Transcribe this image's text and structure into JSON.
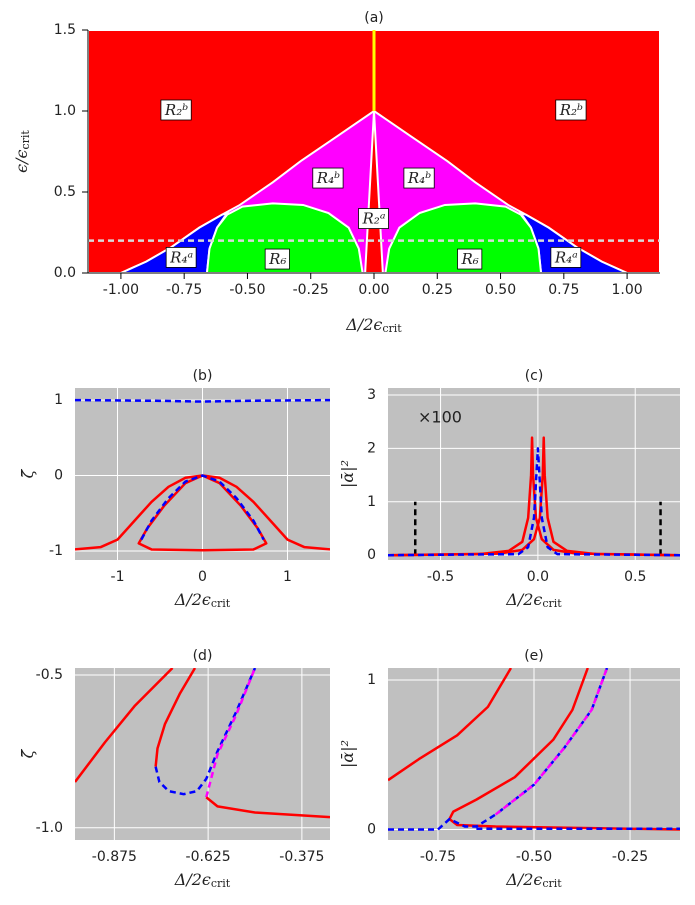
{
  "chart_data": [
    {
      "type": "region",
      "title": "(a)",
      "xlabel": "Δ/2ϵ",
      "xlabel_sub": "crit",
      "ylabel": "ϵ/ϵ",
      "ylabel_sub": "crit",
      "xlim": [
        -1.13,
        1.13
      ],
      "ylim": [
        0,
        1.5
      ],
      "xticks": [
        {
          "value": -1,
          "label": "-1.00"
        },
        {
          "value": -0.75,
          "label": "-0.75"
        },
        {
          "value": -0.5,
          "label": "-0.50"
        },
        {
          "value": -0.25,
          "label": "-0.25"
        },
        {
          "value": 0,
          "label": "0.00"
        },
        {
          "value": 0.25,
          "label": "0.25"
        },
        {
          "value": 0.5,
          "label": "0.50"
        },
        {
          "value": 0.75,
          "label": "0.75"
        },
        {
          "value": 1,
          "label": "1.00"
        }
      ],
      "yticks": [
        {
          "value": 0,
          "label": "0.0"
        },
        {
          "value": 0.5,
          "label": "0.5"
        },
        {
          "value": 1,
          "label": "1.0"
        },
        {
          "value": 1.5,
          "label": "1.5"
        }
      ],
      "grid": false,
      "regions": [
        {
          "name": "R₂ᵇ",
          "color": "#ff0000",
          "x": [
            -1.13,
            0,
            0,
            -1.13
          ],
          "y": [
            0,
            0,
            1.5,
            1.5
          ],
          "label_at": [
            -0.78,
            1.0
          ]
        },
        {
          "name": "R₂ᵇ",
          "color": "#ff0000",
          "x": [
            0,
            1.13,
            1.13,
            0
          ],
          "y": [
            0,
            0,
            1.5,
            1.5
          ],
          "label_at": [
            0.78,
            1.0
          ]
        },
        {
          "name": "R₄ᵇ",
          "color": "#ff00ff",
          "x": [
            -1.0,
            -0.9,
            -0.8,
            -0.69,
            -0.6,
            -0.53,
            -0.4,
            -0.29,
            -0.14,
            0,
            0
          ],
          "y": [
            0,
            0.07,
            0.16,
            0.28,
            0.36,
            0.42,
            0.56,
            0.69,
            0.85,
            1.0,
            0
          ],
          "label_at": [
            -0.18,
            0.58
          ]
        },
        {
          "name": "R₄ᵇ",
          "color": "#ff00ff",
          "x": [
            1.0,
            0.9,
            0.8,
            0.69,
            0.6,
            0.53,
            0.4,
            0.29,
            0.14,
            0,
            0
          ],
          "y": [
            0,
            0.07,
            0.16,
            0.28,
            0.36,
            0.42,
            0.56,
            0.69,
            0.85,
            1.0,
            0
          ],
          "label_at": [
            0.18,
            0.58
          ]
        },
        {
          "name": "R₄ᵃ",
          "color": "#0000ff",
          "x": [
            -1.0,
            -0.9,
            -0.8,
            -0.69,
            -0.6,
            -0.58,
            -0.62,
            -0.65,
            -0.66
          ],
          "y": [
            0,
            0.07,
            0.16,
            0.28,
            0.36,
            0.37,
            0.28,
            0.15,
            0
          ],
          "label_at": [
            -0.76,
            0.09
          ]
        },
        {
          "name": "R₄ᵃ",
          "color": "#0000ff",
          "x": [
            1.0,
            0.9,
            0.8,
            0.69,
            0.6,
            0.58,
            0.62,
            0.65,
            0.66
          ],
          "y": [
            0,
            0.07,
            0.16,
            0.28,
            0.36,
            0.37,
            0.28,
            0.15,
            0
          ],
          "label_at": [
            0.76,
            0.09
          ]
        },
        {
          "name": "R₆",
          "color": "#00ff00",
          "x": [
            -0.66,
            -0.65,
            -0.62,
            -0.58,
            -0.52,
            -0.4,
            -0.28,
            -0.18,
            -0.1,
            -0.06,
            -0.045
          ],
          "y": [
            0,
            0.15,
            0.28,
            0.36,
            0.41,
            0.43,
            0.42,
            0.37,
            0.28,
            0.15,
            0
          ],
          "label_at": [
            -0.38,
            0.08
          ]
        },
        {
          "name": "R₆",
          "color": "#00ff00",
          "x": [
            0.66,
            0.65,
            0.62,
            0.58,
            0.52,
            0.4,
            0.28,
            0.18,
            0.1,
            0.06,
            0.045
          ],
          "y": [
            0,
            0.15,
            0.28,
            0.36,
            0.41,
            0.43,
            0.42,
            0.37,
            0.28,
            0.15,
            0
          ],
          "label_at": [
            0.38,
            0.08
          ]
        },
        {
          "name": "R₂ᵃ",
          "color": "#ff0000",
          "x": [
            -0.035,
            0,
            0.035
          ],
          "y": [
            0,
            1.0,
            0
          ],
          "label_at": [
            0,
            0.33
          ]
        }
      ],
      "series": [
        {
          "color": "#d9d9d9",
          "dash": true,
          "x": [
            -1.13,
            1.13
          ],
          "y": [
            0.2,
            0.2
          ]
        },
        {
          "color": "#ffff00",
          "dash": false,
          "x": [
            0,
            0
          ],
          "y": [
            1.0,
            1.5
          ]
        }
      ]
    },
    {
      "type": "line",
      "title": "(b)",
      "xlabel": "Δ/2ϵ",
      "xlabel_sub": "crit",
      "ylabel": "ζ̄",
      "xlim": [
        -1.5,
        1.5
      ],
      "ylim": [
        -1.12,
        1.16
      ],
      "xticks": [
        -1,
        0,
        1
      ],
      "yticks": [
        -1,
        0,
        1
      ],
      "grid": true,
      "background": "#c0c0c0",
      "series": [
        {
          "color": "#0000ff",
          "dash": true,
          "x": [
            -1.5,
            -0.5,
            0,
            0.5,
            1.5
          ],
          "y": [
            1.0,
            0.99,
            0.98,
            0.99,
            1.0
          ]
        },
        {
          "color": "#ff0000",
          "dash": false,
          "x": [
            -1.5,
            -1.2,
            -1.0,
            -0.8,
            -0.6,
            -0.4,
            -0.2,
            0,
            0.2,
            0.4,
            0.6,
            0.8,
            1.0,
            1.2,
            1.5
          ],
          "y": [
            -0.98,
            -0.95,
            -0.85,
            -0.6,
            -0.35,
            -0.15,
            -0.03,
            0,
            -0.03,
            -0.15,
            -0.35,
            -0.6,
            -0.85,
            -0.95,
            -0.98
          ]
        },
        {
          "color": "#ff0000",
          "dash": false,
          "x": [
            0,
            -0.2,
            -0.45,
            -0.65,
            -0.75,
            -0.6,
            0,
            0.6,
            0.75,
            0.65,
            0.45,
            0.2,
            0
          ],
          "y": [
            0,
            -0.1,
            -0.4,
            -0.7,
            -0.9,
            -0.98,
            -0.99,
            -0.98,
            -0.9,
            -0.7,
            -0.4,
            -0.1,
            0
          ]
        },
        {
          "color": "#0000ff",
          "dash": true,
          "x": [
            -0.72,
            -0.6,
            -0.4,
            -0.2,
            0,
            0.2,
            0.4,
            0.6,
            0.72
          ],
          "y": [
            -0.85,
            -0.6,
            -0.3,
            -0.08,
            0,
            -0.08,
            -0.3,
            -0.6,
            -0.85
          ]
        }
      ]
    },
    {
      "type": "line",
      "title": "(c)",
      "xlabel": "Δ/2ϵ",
      "xlabel_sub": "crit",
      "ylabel": "|ᾱ|²",
      "annotation": "×100",
      "xlim": [
        -0.77,
        0.73
      ],
      "ylim": [
        -0.09,
        3.13
      ],
      "xticks": [
        -0.5,
        {
          "value": 0,
          "label": "0.0"
        },
        0.5
      ],
      "yticks": [
        0,
        1,
        2,
        3
      ],
      "grid": true,
      "background": "#c0c0c0",
      "series": [
        {
          "color": "#000000",
          "dash": true,
          "x": [
            -0.63,
            -0.63
          ],
          "y": [
            0,
            1
          ]
        },
        {
          "color": "#000000",
          "dash": true,
          "x": [
            0.63,
            0.63
          ],
          "y": [
            0,
            1
          ]
        },
        {
          "color": "#ff0000",
          "dash": false,
          "x": [
            -0.77,
            -0.3,
            -0.15,
            -0.08,
            -0.05,
            -0.035,
            -0.03,
            -0.025,
            -0.01,
            0.02,
            0.08,
            0.2,
            0.73
          ],
          "y": [
            0,
            0.02,
            0.08,
            0.25,
            0.7,
            1.5,
            2.2,
            1.5,
            0.7,
            0.3,
            0.1,
            0.03,
            0
          ]
        },
        {
          "color": "#ff0000",
          "dash": false,
          "x": [
            0.73,
            0.3,
            0.15,
            0.08,
            0.05,
            0.035,
            0.03,
            0.025,
            0.01,
            -0.02,
            -0.08,
            -0.2,
            -0.77
          ],
          "y": [
            0,
            0.02,
            0.08,
            0.25,
            0.7,
            1.5,
            2.2,
            1.5,
            0.7,
            0.3,
            0.1,
            0.03,
            0
          ]
        },
        {
          "color": "#0000ff",
          "dash": true,
          "x": [
            -0.77,
            -0.1,
            -0.05,
            -0.02,
            0,
            0.02,
            0.05,
            0.1,
            0.73
          ],
          "y": [
            0,
            0.02,
            0.15,
            0.7,
            2.0,
            0.7,
            0.15,
            0.02,
            0
          ]
        }
      ]
    },
    {
      "type": "line",
      "title": "(d)",
      "xlabel": "Δ/2ϵ",
      "xlabel_sub": "crit",
      "ylabel": "ζ̄",
      "xlim": [
        -0.98,
        -0.3
      ],
      "ylim": [
        -1.04,
        -0.477
      ],
      "xticks": [
        -0.875,
        -0.625,
        -0.375
      ],
      "yticks": [
        -0.5,
        {
          "value": -1,
          "label": "-1.0"
        }
      ],
      "grid": true,
      "background": "#c0c0c0",
      "series": [
        {
          "color": "#ff0000",
          "dash": false,
          "x": [
            -0.98,
            -0.9,
            -0.82,
            -0.72
          ],
          "y": [
            -0.85,
            -0.72,
            -0.6,
            -0.477
          ]
        },
        {
          "color": "#ff0000",
          "dash": false,
          "x": [
            -0.66,
            -0.7,
            -0.74,
            -0.76,
            -0.765
          ],
          "y": [
            -0.477,
            -0.56,
            -0.66,
            -0.74,
            -0.8
          ]
        },
        {
          "color": "#0000ff",
          "dash": true,
          "x": [
            -0.765,
            -0.755,
            -0.73,
            -0.69,
            -0.655,
            -0.63,
            -0.6,
            -0.55,
            -0.5
          ],
          "y": [
            -0.8,
            -0.85,
            -0.88,
            -0.89,
            -0.88,
            -0.84,
            -0.75,
            -0.62,
            -0.477
          ]
        },
        {
          "color": "#ff00ff",
          "dash": true,
          "x": [
            -0.63,
            -0.6,
            -0.55,
            -0.5
          ],
          "y": [
            -0.9,
            -0.76,
            -0.63,
            -0.477
          ]
        },
        {
          "color": "#ff0000",
          "dash": false,
          "x": [
            -0.63,
            -0.6,
            -0.5,
            -0.3
          ],
          "y": [
            -0.9,
            -0.93,
            -0.95,
            -0.965
          ]
        }
      ]
    },
    {
      "type": "line",
      "title": "(e)",
      "xlabel": "Δ/2ϵ",
      "xlabel_sub": "crit",
      "ylabel": "|ᾱ|²",
      "xlim": [
        -0.88,
        -0.12
      ],
      "ylim": [
        -0.07,
        1.08
      ],
      "xticks": [
        -0.75,
        {
          "value": -0.5,
          "label": "-0.50"
        },
        -0.25
      ],
      "yticks": [
        0,
        1
      ],
      "grid": true,
      "background": "#c0c0c0",
      "series": [
        {
          "color": "#ff0000",
          "dash": false,
          "x": [
            -0.88,
            -0.8,
            -0.7,
            -0.62,
            -0.56
          ],
          "y": [
            0.33,
            0.47,
            0.63,
            0.82,
            1.08
          ]
        },
        {
          "color": "#ff0000",
          "dash": false,
          "x": [
            -0.72,
            -0.71,
            -0.65,
            -0.55,
            -0.45,
            -0.4,
            -0.36
          ],
          "y": [
            0.07,
            0.12,
            0.2,
            0.35,
            0.6,
            0.8,
            1.08
          ]
        },
        {
          "color": "#ff0000",
          "dash": false,
          "x": [
            -0.72,
            -0.7,
            -0.6,
            -0.12
          ],
          "y": [
            0.07,
            0.03,
            0.02,
            0.0
          ]
        },
        {
          "color": "#0000ff",
          "dash": true,
          "x": [
            -0.88,
            -0.75,
            -0.72,
            -0.68,
            -0.65,
            -0.6,
            -0.5,
            -0.42,
            -0.35,
            -0.31
          ],
          "y": [
            0,
            0,
            0.07,
            0.02,
            0.02,
            0.1,
            0.3,
            0.55,
            0.8,
            1.08
          ]
        },
        {
          "color": "#ff00ff",
          "dash": true,
          "x": [
            -0.6,
            -0.5,
            -0.42,
            -0.35,
            -0.31
          ],
          "y": [
            0.1,
            0.3,
            0.55,
            0.8,
            1.08
          ]
        },
        {
          "color": "#0000ff",
          "dash": true,
          "x": [
            -0.65,
            -0.12
          ],
          "y": [
            0.005,
            0.005
          ]
        }
      ]
    }
  ]
}
